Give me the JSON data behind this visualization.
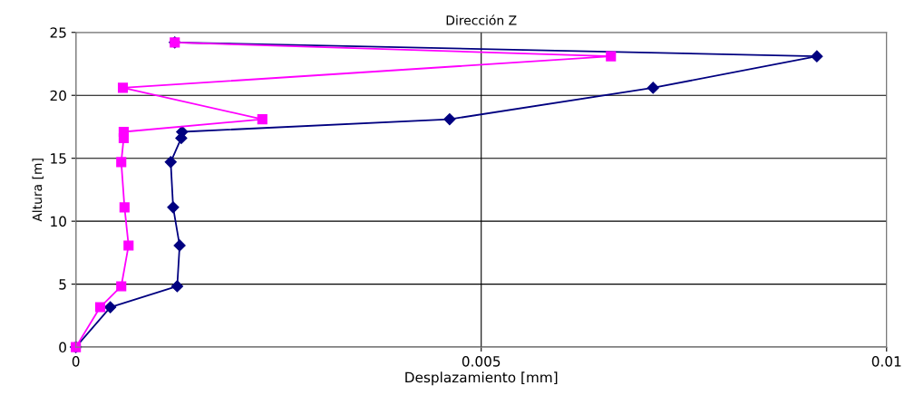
{
  "chart_data": {
    "type": "line",
    "title": "Dirección Z",
    "xlabel": "Desplazamiento [mm]",
    "ylabel": "Altura [m]",
    "xlim": [
      0,
      0.01
    ],
    "xticks": [
      0,
      0.005,
      0.01
    ],
    "ylim": [
      0,
      25
    ],
    "yticks": [
      0,
      5,
      10,
      15,
      20,
      25
    ],
    "grid": true,
    "line_style": "solid",
    "series": [
      {
        "color": "#000080",
        "marker": "diamond",
        "x": [
          0,
          0.000425,
          0.00125,
          0.00128,
          0.0012,
          0.00117,
          0.0013,
          0.00131,
          0.00461,
          0.00712,
          0.00914,
          0.00122
        ],
        "values": [
          0,
          3.17,
          4.83,
          8.07,
          11.1,
          14.7,
          16.6,
          17.1,
          18.1,
          20.6,
          23.1,
          24.2
        ]
      },
      {
        "color": "#ff00ff",
        "marker": "square",
        "x": [
          0,
          0.0003,
          0.00056,
          0.00065,
          0.0006,
          0.00056,
          0.00059,
          0.00059,
          0.0023,
          0.00058,
          0.0066,
          0.00122
        ],
        "values": [
          0,
          3.17,
          4.83,
          8.07,
          11.1,
          14.7,
          16.6,
          17.1,
          18.1,
          20.6,
          23.1,
          24.2
        ]
      }
    ]
  }
}
